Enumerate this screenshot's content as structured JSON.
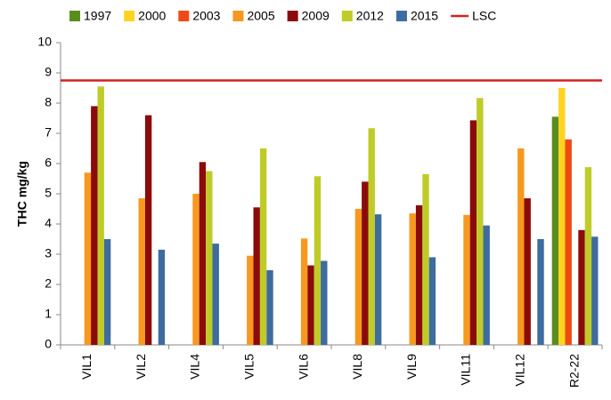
{
  "chart_data": {
    "type": "bar",
    "y_label": "THC mg/kg",
    "categories": [
      "VIL1",
      "VIL2",
      "VIL4",
      "VIL5",
      "VIL6",
      "VIL8",
      "VIL9",
      "VIL11",
      "VIL12",
      "R2-22"
    ],
    "series": [
      {
        "name": "1997",
        "color": "#5b8c1f",
        "values": [
          null,
          null,
          null,
          null,
          null,
          null,
          null,
          null,
          null,
          7.55
        ]
      },
      {
        "name": "2000",
        "color": "#ffd320",
        "values": [
          null,
          null,
          null,
          null,
          null,
          null,
          null,
          null,
          null,
          8.5
        ]
      },
      {
        "name": "2003",
        "color": "#f04a14",
        "values": [
          null,
          null,
          null,
          null,
          null,
          null,
          null,
          null,
          null,
          6.8
        ]
      },
      {
        "name": "2005",
        "color": "#f7981f",
        "values": [
          5.7,
          4.85,
          5.0,
          2.95,
          3.52,
          4.5,
          4.35,
          4.3,
          6.5,
          null
        ]
      },
      {
        "name": "2009",
        "color": "#8b0b0b",
        "values": [
          7.9,
          7.6,
          6.05,
          4.55,
          2.63,
          5.4,
          4.62,
          7.43,
          4.85,
          3.8
        ]
      },
      {
        "name": "2012",
        "color": "#bfcc28",
        "values": [
          8.55,
          null,
          5.75,
          6.5,
          5.58,
          7.17,
          5.65,
          8.17,
          null,
          5.88
        ]
      },
      {
        "name": "2015",
        "color": "#3e6c9f",
        "values": [
          3.5,
          3.15,
          3.35,
          2.47,
          2.78,
          4.32,
          2.9,
          3.95,
          3.5,
          3.58
        ]
      }
    ],
    "reference_line": {
      "name": "LSC",
      "value": 8.75,
      "color": "#d62020"
    },
    "ylim": [
      0,
      10
    ],
    "yticks": [
      0,
      1,
      2,
      3,
      4,
      5,
      6,
      7,
      8,
      9,
      10
    ],
    "grid": false
  }
}
